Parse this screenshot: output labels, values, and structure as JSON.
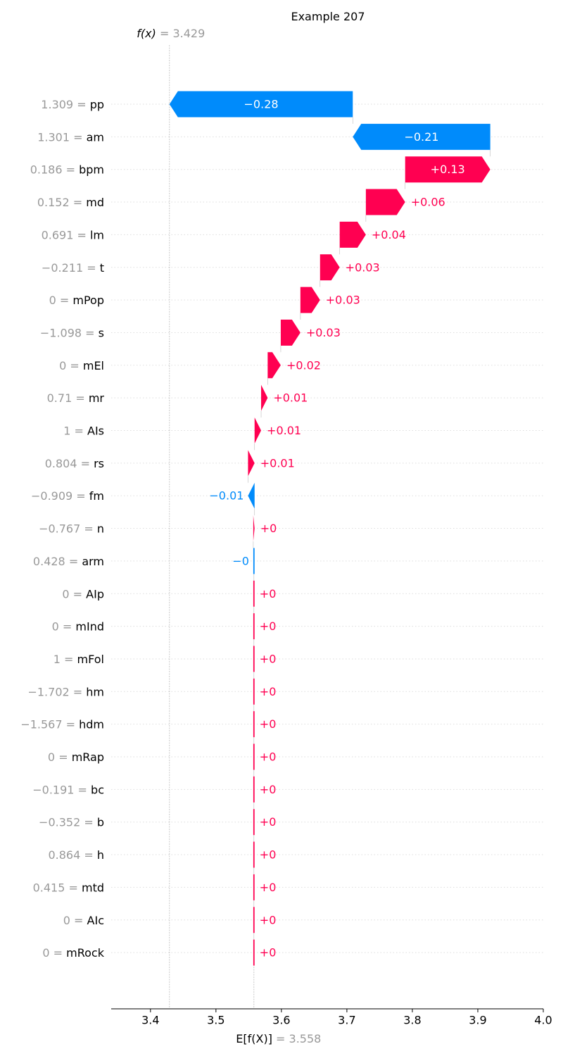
{
  "chart_data": {
    "type": "waterfall",
    "title": "Example 207",
    "fx_label": "f(x)",
    "fx_value": "3.429",
    "fx": 3.429,
    "base_label": "E[f(X)]",
    "base_value_text": "3.558",
    "base_value": 3.558,
    "xlim": [
      3.34,
      4.0
    ],
    "xticks": [
      "3.4",
      "3.5",
      "3.6",
      "3.7",
      "3.8",
      "3.9",
      "4.0"
    ],
    "colors": {
      "positive": "#ff0051",
      "negative": "#008bfb",
      "grey": "#999999",
      "axis": "#000000"
    },
    "features": [
      {
        "value": "1.309",
        "name": "pp",
        "shap": -0.28,
        "label": "−0.28"
      },
      {
        "value": "1.301",
        "name": "am",
        "shap": -0.21,
        "label": "−0.21"
      },
      {
        "value": "0.186",
        "name": "bpm",
        "shap": 0.13,
        "label": "+0.13"
      },
      {
        "value": "0.152",
        "name": "md",
        "shap": 0.06,
        "label": "+0.06"
      },
      {
        "value": "0.691",
        "name": "lm",
        "shap": 0.04,
        "label": "+0.04"
      },
      {
        "value": "−0.211",
        "name": "t",
        "shap": 0.03,
        "label": "+0.03"
      },
      {
        "value": "0",
        "name": "mPop",
        "shap": 0.03,
        "label": "+0.03"
      },
      {
        "value": "−1.098",
        "name": "s",
        "shap": 0.03,
        "label": "+0.03"
      },
      {
        "value": "0",
        "name": "mEl",
        "shap": 0.02,
        "label": "+0.02"
      },
      {
        "value": "0.71",
        "name": "mr",
        "shap": 0.01,
        "label": "+0.01"
      },
      {
        "value": "1",
        "name": "AIs",
        "shap": 0.01,
        "label": "+0.01"
      },
      {
        "value": "0.804",
        "name": "rs",
        "shap": 0.01,
        "label": "+0.01"
      },
      {
        "value": "−0.909",
        "name": "fm",
        "shap": -0.01,
        "label": "−0.01"
      },
      {
        "value": "−0.767",
        "name": "n",
        "shap": 0.002,
        "label": "+0"
      },
      {
        "value": "0.428",
        "name": "arm",
        "shap": -0.001,
        "label": "−0"
      },
      {
        "value": "0",
        "name": "AIp",
        "shap": 0.0,
        "label": "+0"
      },
      {
        "value": "0",
        "name": "mInd",
        "shap": 0.0,
        "label": "+0"
      },
      {
        "value": "1",
        "name": "mFol",
        "shap": 0.0,
        "label": "+0"
      },
      {
        "value": "−1.702",
        "name": "hm",
        "shap": 0.0,
        "label": "+0"
      },
      {
        "value": "−1.567",
        "name": "hdm",
        "shap": 0.0,
        "label": "+0"
      },
      {
        "value": "0",
        "name": "mRap",
        "shap": 0.0,
        "label": "+0"
      },
      {
        "value": "−0.191",
        "name": "bc",
        "shap": 0.0,
        "label": "+0"
      },
      {
        "value": "−0.352",
        "name": "b",
        "shap": 0.0,
        "label": "+0"
      },
      {
        "value": "0.864",
        "name": "h",
        "shap": 0.0,
        "label": "+0"
      },
      {
        "value": "0.415",
        "name": "mtd",
        "shap": 0.0,
        "label": "+0"
      },
      {
        "value": "0",
        "name": "AIc",
        "shap": 0.0,
        "label": "+0"
      },
      {
        "value": "0",
        "name": "mRock",
        "shap": 0.0,
        "label": "+0"
      }
    ]
  }
}
